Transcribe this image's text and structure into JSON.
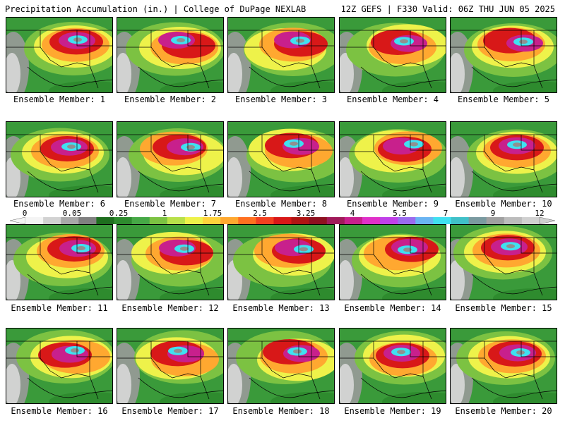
{
  "header": {
    "left": "Precipitation Accumulation (in.) | College of DuPage NEXLAB",
    "right": "12Z GEFS | F330 Valid: 06Z THU JUN 05 2025"
  },
  "colorbar": {
    "labels": [
      "0",
      "0.05",
      "0.25",
      "1",
      "1.75",
      "2.5",
      "3.25",
      "4",
      "5.5",
      "7",
      "9",
      "12"
    ],
    "colors": [
      "#f4f4f4",
      "#d2d2d2",
      "#a8a8a8",
      "#808080",
      "#1e6e1e",
      "#2e8b2e",
      "#46a846",
      "#7cc242",
      "#b8e04a",
      "#eef24a",
      "#ffd23c",
      "#ffa830",
      "#ff7020",
      "#f24020",
      "#d81818",
      "#b01414",
      "#8e1020",
      "#a01a5a",
      "#c8208c",
      "#e030c8",
      "#c040e8",
      "#9a6aee",
      "#6ab4f2",
      "#40e0f0",
      "#40c0c8",
      "#7a9aa0",
      "#a0a0a0",
      "#bcbcbc",
      "#d0d0d0"
    ]
  },
  "members": [
    {
      "label": "Ensemble Member: 1"
    },
    {
      "label": "Ensemble Member: 2"
    },
    {
      "label": "Ensemble Member: 3"
    },
    {
      "label": "Ensemble Member: 4"
    },
    {
      "label": "Ensemble Member: 5"
    },
    {
      "label": "Ensemble Member: 6"
    },
    {
      "label": "Ensemble Member: 7"
    },
    {
      "label": "Ensemble Member: 8"
    },
    {
      "label": "Ensemble Member: 9"
    },
    {
      "label": "Ensemble Member: 10"
    },
    {
      "label": "Ensemble Member: 11"
    },
    {
      "label": "Ensemble Member: 12"
    },
    {
      "label": "Ensemble Member: 13"
    },
    {
      "label": "Ensemble Member: 14"
    },
    {
      "label": "Ensemble Member: 15"
    },
    {
      "label": "Ensemble Member: 16"
    },
    {
      "label": "Ensemble Member: 17"
    },
    {
      "label": "Ensemble Member: 18"
    },
    {
      "label": "Ensemble Member: 19"
    },
    {
      "label": "Ensemble Member: 20"
    }
  ]
}
